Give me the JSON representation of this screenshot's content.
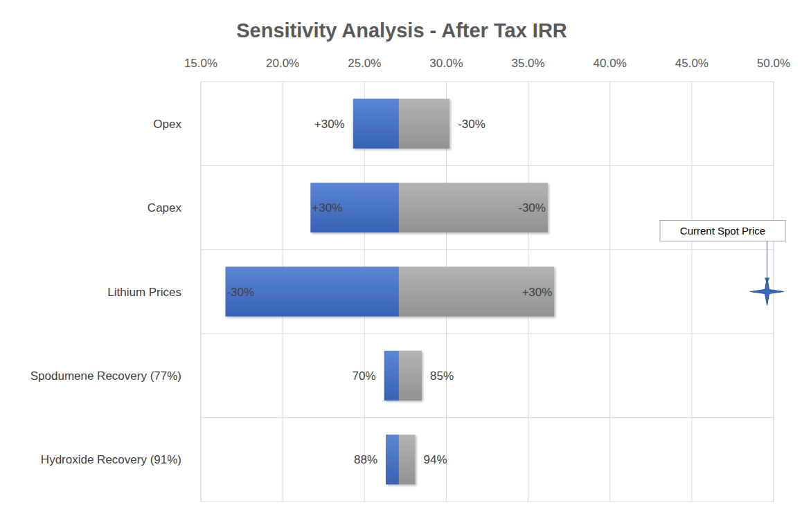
{
  "chart_data": {
    "type": "bar",
    "orientation": "horizontal",
    "title": "Sensitivity Analysis - After Tax IRR",
    "categories": [
      "Opex",
      "Capex",
      "Lithium Prices",
      "Spodumene Recovery (77%)",
      "Hydroxide Recovery (91%)"
    ],
    "base": 27.1,
    "series": [
      {
        "color": "#3f6fce",
        "values": [
          24.3,
          21.7,
          16.5,
          26.2,
          26.3
        ],
        "labels": [
          "+30%",
          "+30%",
          "-30%",
          "70%",
          "88%"
        ]
      },
      {
        "color": "#a6a6a6",
        "values": [
          30.2,
          36.2,
          36.6,
          28.5,
          28.1
        ],
        "labels": [
          "-30%",
          "-30%",
          "+30%",
          "85%",
          "94%"
        ]
      }
    ],
    "xlim": [
      15,
      50
    ],
    "xticks": [
      {
        "value": 15,
        "label": "15.0%"
      },
      {
        "value": 20,
        "label": "20.0%"
      },
      {
        "value": 25,
        "label": "25.0%"
      },
      {
        "value": 30,
        "label": "30.0%"
      },
      {
        "value": 35,
        "label": "35.0%"
      },
      {
        "value": 40,
        "label": "40.0%"
      },
      {
        "value": 45,
        "label": "45.0%"
      },
      {
        "value": 50,
        "label": "50.0%"
      }
    ],
    "grid": true,
    "annotations": [
      {
        "text": "Current Spot Price",
        "value": 49.6,
        "category": "Lithium Prices"
      }
    ]
  }
}
